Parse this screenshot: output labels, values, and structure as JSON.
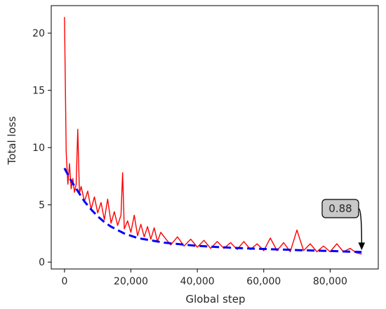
{
  "chart_data": {
    "type": "line",
    "title": "",
    "xlabel": "Global step",
    "ylabel": "Total loss",
    "xlim": [
      -4000,
      94500
    ],
    "ylim": [
      -0.6,
      22.4
    ],
    "xticks": [
      0,
      20000,
      40000,
      60000,
      80000
    ],
    "xtick_labels": [
      "0",
      "20,000",
      "40,000",
      "60,000",
      "80,000"
    ],
    "yticks": [
      0,
      5,
      10,
      15,
      20
    ],
    "ytick_labels": [
      "0",
      "5",
      "10",
      "15",
      "20"
    ],
    "grid": false,
    "legend": "none",
    "series": [
      {
        "style": "solid",
        "color": "#ff0000",
        "x": [
          0,
          500,
          1000,
          1500,
          2000,
          2500,
          3000,
          3500,
          4000,
          4500,
          5000,
          6000,
          7000,
          8000,
          9000,
          10000,
          11000,
          12000,
          13000,
          14000,
          15000,
          16000,
          17000,
          17500,
          18000,
          19000,
          20000,
          21000,
          22000,
          23000,
          24000,
          25000,
          26000,
          27000,
          28000,
          29000,
          30000,
          32000,
          34000,
          36000,
          38000,
          40000,
          42000,
          44000,
          46000,
          48000,
          50000,
          52000,
          54000,
          56000,
          58000,
          60000,
          62000,
          64000,
          66000,
          68000,
          70000,
          72000,
          74000,
          76000,
          78000,
          80000,
          82000,
          84000,
          86000,
          88000,
          89500
        ],
        "y": [
          21.4,
          9.6,
          6.8,
          8.6,
          6.4,
          7.3,
          6.1,
          6.8,
          11.6,
          6.0,
          6.6,
          5.3,
          6.2,
          4.6,
          5.7,
          4.3,
          5.2,
          3.7,
          5.5,
          3.4,
          4.4,
          3.2,
          4.1,
          7.8,
          2.9,
          3.6,
          2.6,
          4.1,
          2.3,
          3.3,
          2.2,
          3.1,
          2.0,
          3.0,
          1.8,
          2.6,
          2.2,
          1.5,
          2.2,
          1.4,
          2.0,
          1.3,
          1.9,
          1.2,
          1.8,
          1.2,
          1.7,
          1.1,
          1.8,
          1.1,
          1.6,
          1.0,
          2.1,
          1.0,
          1.7,
          0.9,
          2.8,
          1.0,
          1.6,
          0.9,
          1.4,
          0.9,
          1.6,
          0.9,
          1.2,
          0.8,
          0.7
        ]
      },
      {
        "style": "dashed",
        "color": "#0000ff",
        "x": [
          0,
          2000,
          4000,
          6000,
          8000,
          10000,
          12000,
          14000,
          16000,
          18000,
          20000,
          22000,
          24000,
          26000,
          28000,
          30000,
          35000,
          40000,
          45000,
          50000,
          55000,
          60000,
          65000,
          70000,
          75000,
          80000,
          85000,
          89500
        ],
        "y": [
          8.2,
          7.1,
          6.2,
          5.3,
          4.6,
          4.0,
          3.5,
          3.1,
          2.8,
          2.5,
          2.3,
          2.1,
          2.0,
          1.9,
          1.8,
          1.7,
          1.55,
          1.42,
          1.33,
          1.26,
          1.2,
          1.15,
          1.1,
          1.05,
          1.01,
          0.97,
          0.92,
          0.88
        ]
      }
    ],
    "annotations": [
      {
        "text": "0.88",
        "x": 89500,
        "y": 0.88
      }
    ]
  }
}
